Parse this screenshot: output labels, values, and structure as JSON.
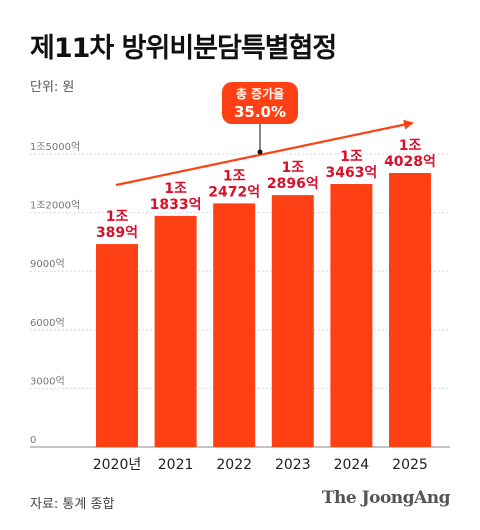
{
  "title": "제11차 방위비분담특별협정",
  "unit_label": "단위: 원",
  "source": "자료: 통계 종합",
  "brand": "The JoongAng",
  "colors": {
    "bar": "#ff4014",
    "label": "#d8102a",
    "accent": "#ff4014"
  },
  "chart_data": {
    "type": "bar",
    "categories": [
      "2020년",
      "2021",
      "2022",
      "2023",
      "2024",
      "2025"
    ],
    "values": [
      10389,
      11833,
      12472,
      12896,
      13463,
      14028
    ],
    "value_labels": [
      [
        "1조",
        "389억"
      ],
      [
        "1조",
        "1833억"
      ],
      [
        "1조",
        "2472억"
      ],
      [
        "1조",
        "2896억"
      ],
      [
        "1조",
        "3463억"
      ],
      [
        "1조",
        "4028억"
      ]
    ],
    "y_ticks": [
      0,
      3000,
      6000,
      9000,
      12000,
      15000
    ],
    "y_tick_labels": [
      "0",
      "3000억",
      "6000억",
      "9000억",
      "1조2000억",
      "1조5000억"
    ],
    "ylim": [
      0,
      15000
    ],
    "grid": true,
    "annotation": {
      "line1": "총 증가율",
      "line2": "35.0%"
    }
  }
}
